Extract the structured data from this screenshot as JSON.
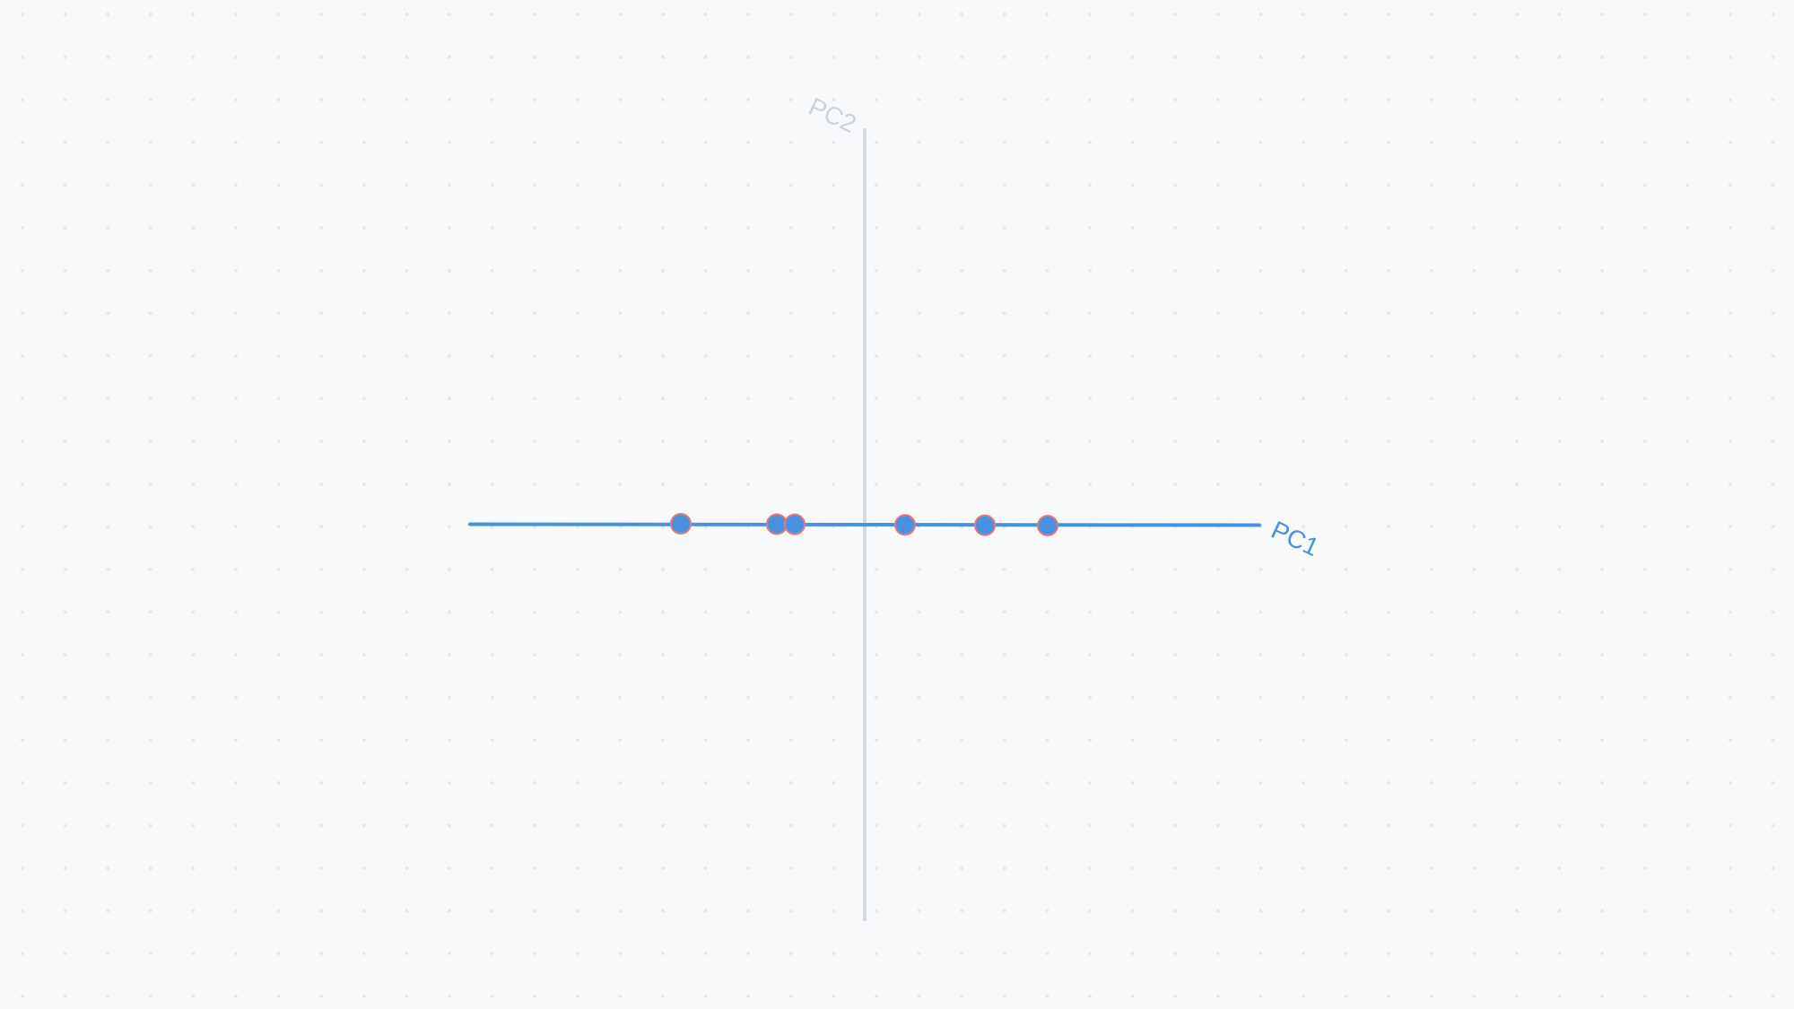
{
  "colors": {
    "background": "#f8f9fb",
    "grid_dot": "#e3e6ec",
    "pc1_axis": "#4a90e2",
    "pc2_axis": "#d2d9e3",
    "pc2_label": "#cdd4df",
    "point_fill": "#4a90e2",
    "point_stroke": "#e07a7a"
  },
  "axes": {
    "pc1_label": "PC1",
    "pc2_label": "PC2"
  },
  "points": [
    {
      "pc1": -2.05,
      "pc2": 0.0
    },
    {
      "pc1": -0.98,
      "pc2": 0.0
    },
    {
      "pc1": -0.78,
      "pc2": 0.0
    },
    {
      "pc1": 0.45,
      "pc2": 0.0
    },
    {
      "pc1": 1.34,
      "pc2": 0.0
    },
    {
      "pc1": 2.04,
      "pc2": 0.0
    }
  ]
}
